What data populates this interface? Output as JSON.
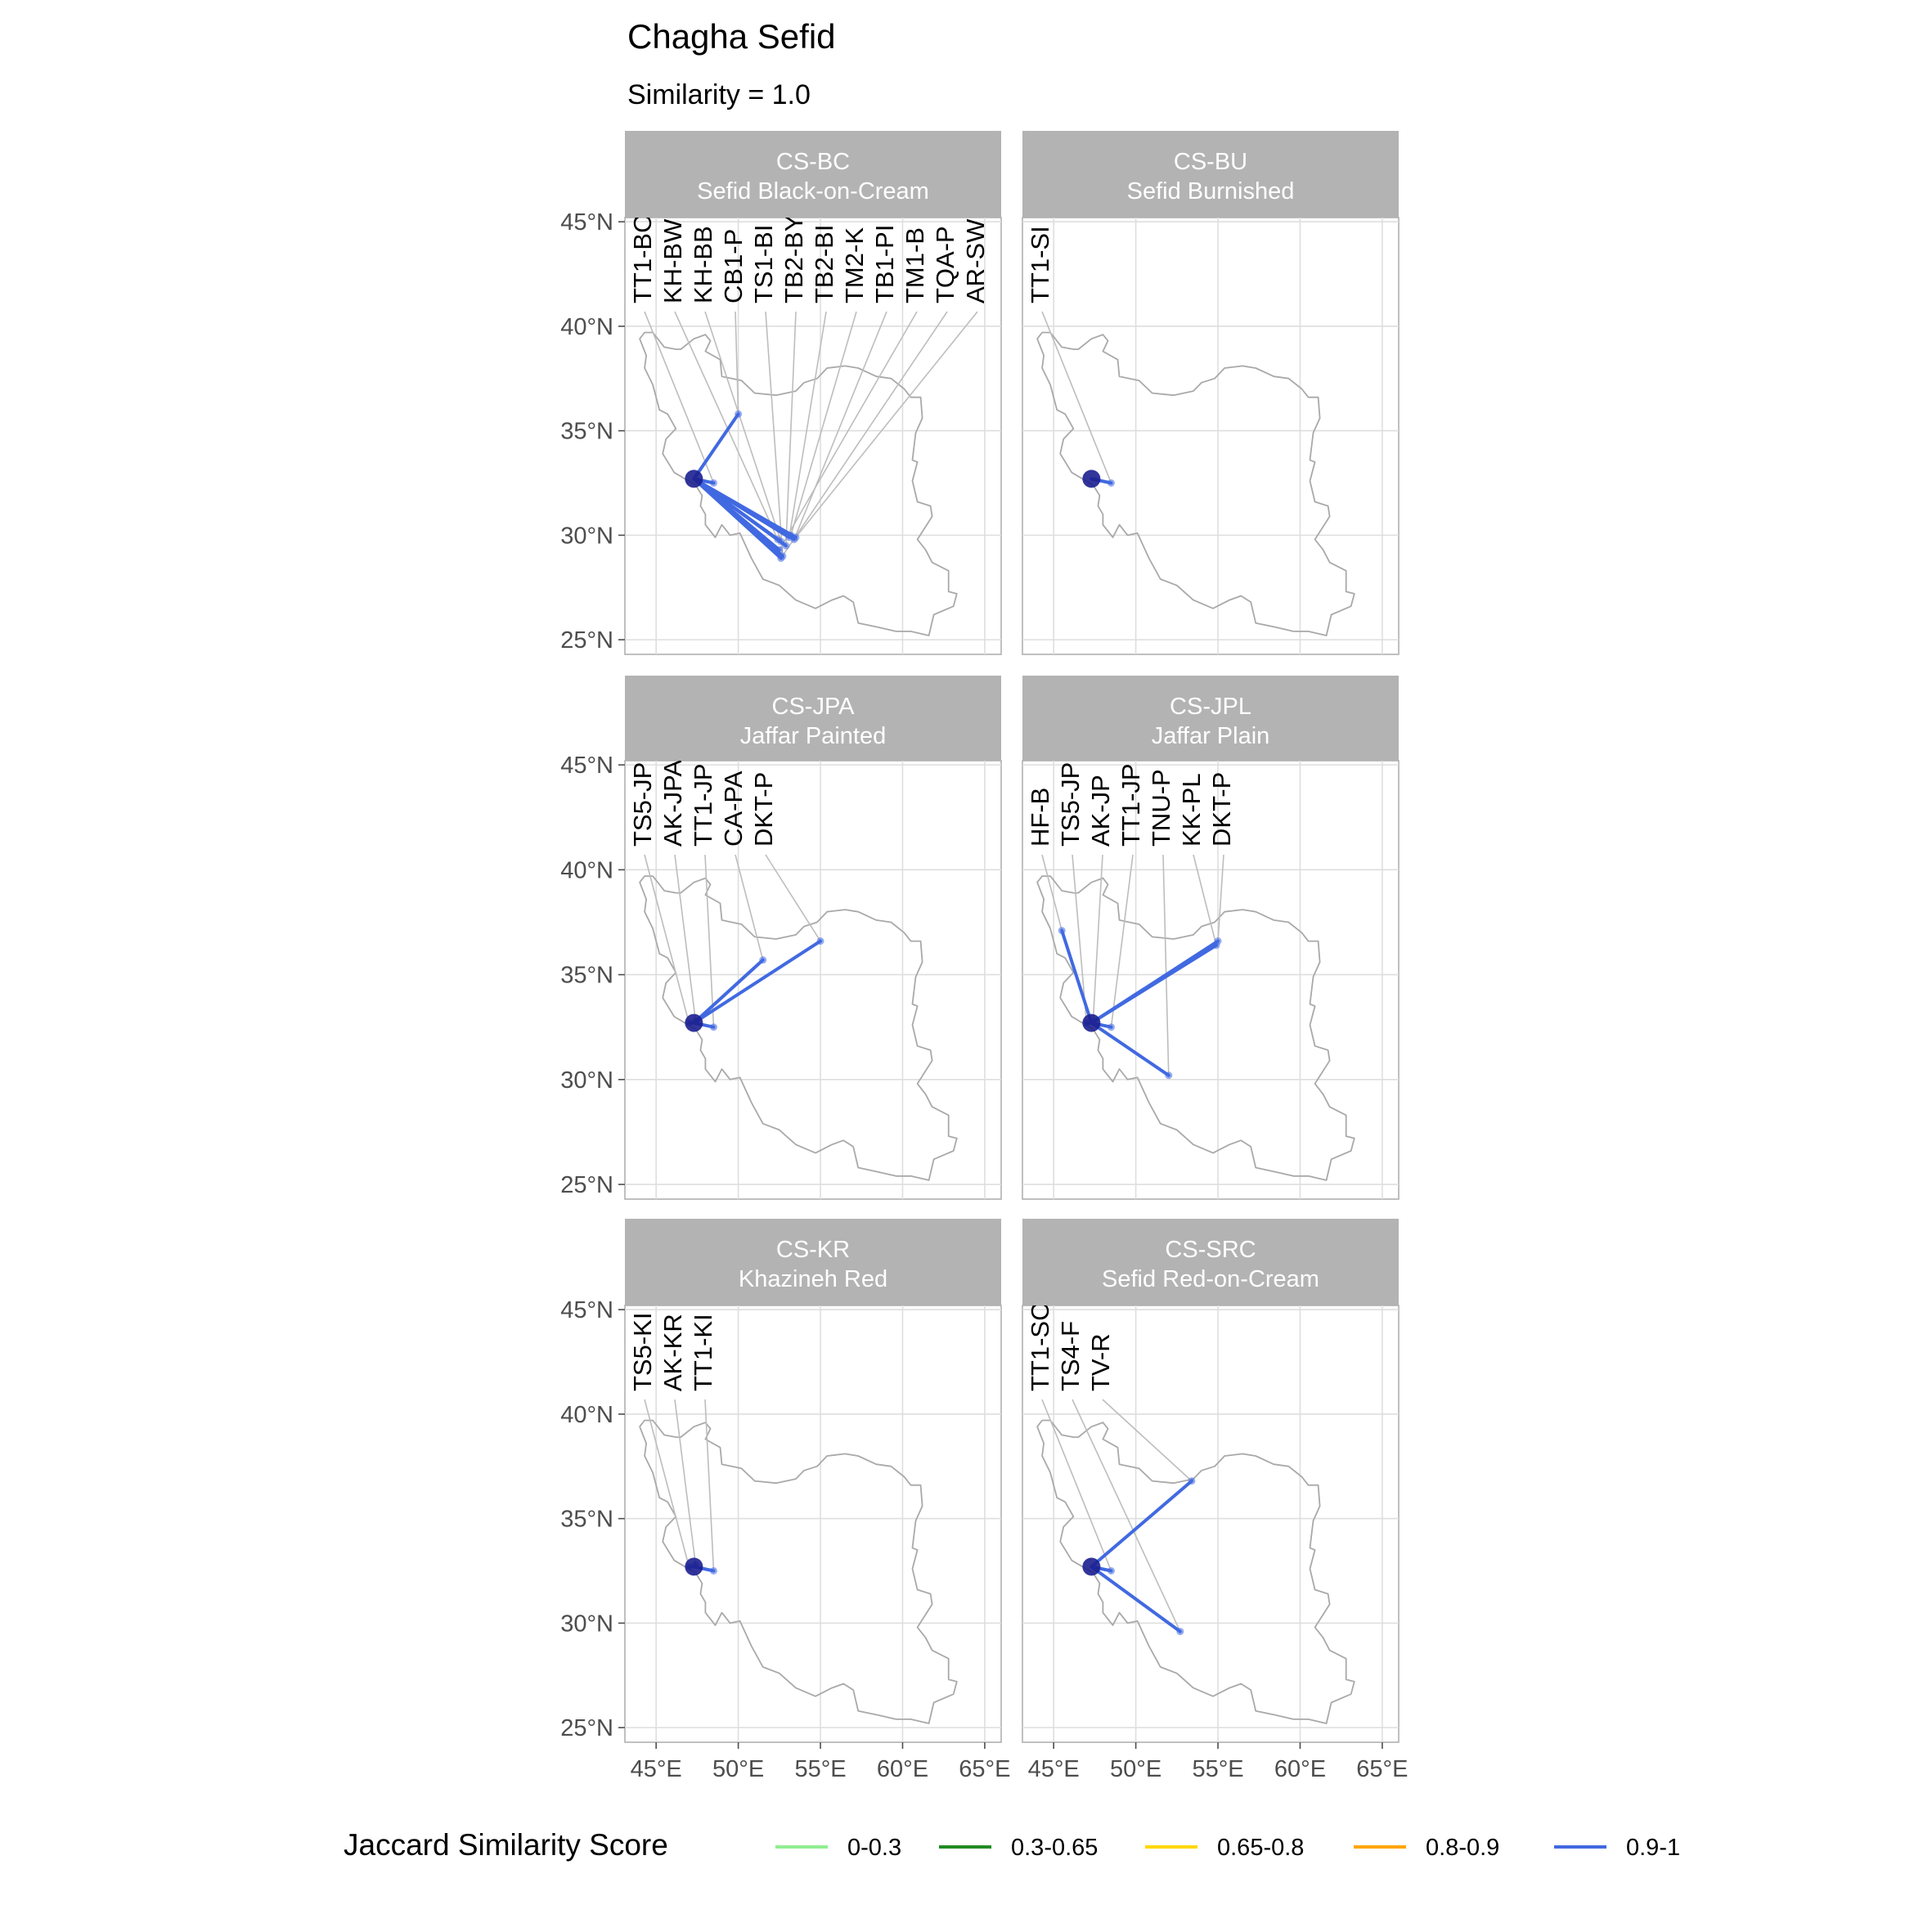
{
  "title": "Chagha Sefid",
  "subtitle": "Similarity = 1.0",
  "legend": {
    "title": "Jaccard Similarity Score",
    "items": [
      {
        "label": "0-0.3",
        "color": "#90ee90"
      },
      {
        "label": "0.3-0.65",
        "color": "#228b22"
      },
      {
        "label": "0.65-0.8",
        "color": "#ffd700"
      },
      {
        "label": "0.8-0.9",
        "color": "#ffa500"
      },
      {
        "label": "0.9-1",
        "color": "#4169e1"
      }
    ]
  },
  "chart_data": {
    "type": "map",
    "x_ticks": [
      "45°E",
      "50°E",
      "55°E",
      "60°E",
      "65°E"
    ],
    "y_ticks": [
      "25°N",
      "30°N",
      "35°N",
      "40°N",
      "45°N"
    ],
    "x_values": [
      45,
      50,
      55,
      60,
      65
    ],
    "y_values": [
      25,
      30,
      35,
      40,
      45
    ],
    "xlim": [
      43.1,
      66.0
    ],
    "ylim": [
      24.3,
      45.2
    ],
    "grid": true,
    "origin": {
      "lon": 47.3,
      "lat": 32.7
    },
    "panels": [
      {
        "code": "CS-BC",
        "name": "Sefid Black-on-Cream",
        "sites": [
          {
            "label": "TT1-BC",
            "lon": 48.5,
            "lat": 32.5,
            "score": "0.9-1"
          },
          {
            "label": "KH-BW",
            "lon": 52.4,
            "lat": 29.8,
            "score": "0.9-1"
          },
          {
            "label": "KH-BB",
            "lon": 52.6,
            "lat": 29.7,
            "score": "0.9-1"
          },
          {
            "label": "CB1-P",
            "lon": 50.0,
            "lat": 35.8,
            "score": "0.9-1"
          },
          {
            "label": "TS1-BI",
            "lon": 52.7,
            "lat": 29.0,
            "score": "0.9-1"
          },
          {
            "label": "TB2-BY",
            "lon": 52.9,
            "lat": 29.5,
            "score": "0.9-1"
          },
          {
            "label": "TB2-BI",
            "lon": 53.1,
            "lat": 29.9,
            "score": "0.9-1"
          },
          {
            "label": "TM2-K",
            "lon": 53.2,
            "lat": 30.0,
            "score": "0.9-1"
          },
          {
            "label": "TB1-PI",
            "lon": 53.4,
            "lat": 29.8,
            "score": "0.9-1"
          },
          {
            "label": "TM1-B",
            "lon": 52.5,
            "lat": 29.3,
            "score": "0.9-1"
          },
          {
            "label": "TQA-P",
            "lon": 52.6,
            "lat": 28.9,
            "score": "0.9-1"
          },
          {
            "label": "AR-SW",
            "lon": 53.5,
            "lat": 29.9,
            "score": "0.9-1"
          }
        ]
      },
      {
        "code": "CS-BU",
        "name": "Sefid Burnished",
        "sites": [
          {
            "label": "TT1-SI",
            "lon": 48.5,
            "lat": 32.5,
            "score": "0.9-1"
          }
        ]
      },
      {
        "code": "CS-JPA",
        "name": "Jaffar Painted",
        "sites": [
          {
            "label": "TS5-JP",
            "lon": 47.0,
            "lat": 32.7,
            "score": "0.9-1"
          },
          {
            "label": "AK-JPA",
            "lon": 47.4,
            "lat": 32.8,
            "score": "0.9-1"
          },
          {
            "label": "TT1-JP",
            "lon": 48.5,
            "lat": 32.5,
            "score": "0.9-1"
          },
          {
            "label": "CA-PA",
            "lon": 51.5,
            "lat": 35.7,
            "score": "0.9-1"
          },
          {
            "label": "DKT-P",
            "lon": 55.0,
            "lat": 36.6,
            "score": "0.9-1"
          }
        ]
      },
      {
        "code": "CS-JPL",
        "name": "Jaffar Plain",
        "sites": [
          {
            "label": "HF-B",
            "lon": 45.5,
            "lat": 37.1,
            "score": "0.9-1"
          },
          {
            "label": "TS5-JP",
            "lon": 47.0,
            "lat": 32.7,
            "score": "0.9-1"
          },
          {
            "label": "AK-JP",
            "lon": 47.4,
            "lat": 32.8,
            "score": "0.9-1"
          },
          {
            "label": "TT1-JP",
            "lon": 48.5,
            "lat": 32.5,
            "score": "0.9-1"
          },
          {
            "label": "TNU-P",
            "lon": 52.0,
            "lat": 30.2,
            "score": "0.9-1"
          },
          {
            "label": "KK-PL",
            "lon": 54.9,
            "lat": 36.4,
            "score": "0.9-1"
          },
          {
            "label": "DKT-P",
            "lon": 55.0,
            "lat": 36.6,
            "score": "0.9-1"
          }
        ]
      },
      {
        "code": "CS-KR",
        "name": "Khazineh Red",
        "sites": [
          {
            "label": "TS5-KI",
            "lon": 47.0,
            "lat": 32.7,
            "score": "0.9-1"
          },
          {
            "label": "AK-KR",
            "lon": 47.4,
            "lat": 32.8,
            "score": "0.9-1"
          },
          {
            "label": "TT1-KI",
            "lon": 48.5,
            "lat": 32.5,
            "score": "0.9-1"
          }
        ]
      },
      {
        "code": "CS-SRC",
        "name": "Sefid Red-on-Cream",
        "sites": [
          {
            "label": "TT1-SC",
            "lon": 48.5,
            "lat": 32.5,
            "score": "0.9-1"
          },
          {
            "label": "TS4-F",
            "lon": 52.7,
            "lat": 29.6,
            "score": "0.9-1"
          },
          {
            "label": "TV-R",
            "lon": 53.4,
            "lat": 36.8,
            "score": "0.9-1"
          }
        ]
      }
    ]
  }
}
